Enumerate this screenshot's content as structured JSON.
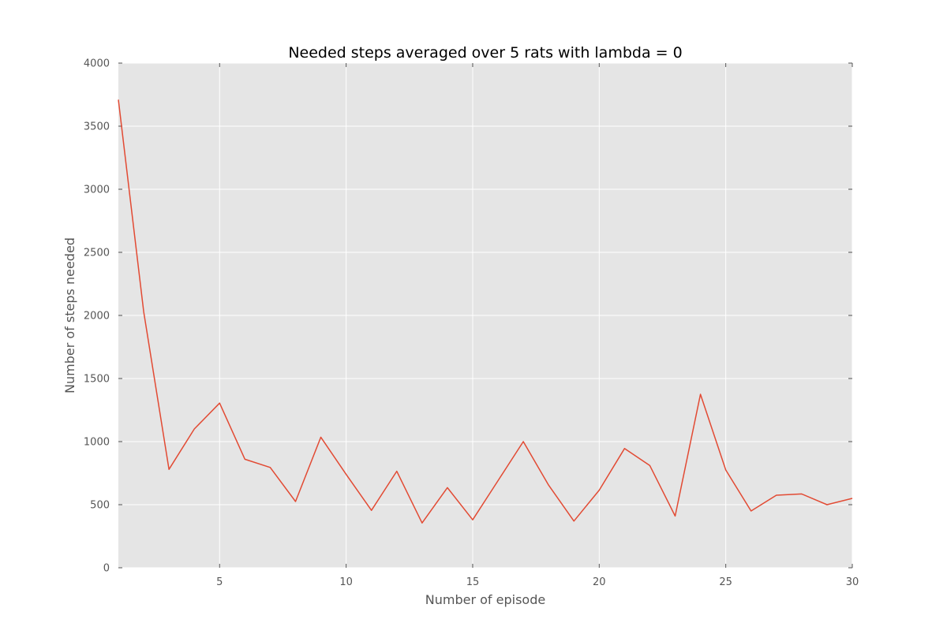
{
  "chart_data": {
    "type": "line",
    "title": "Needed steps averaged over 5 rats with lambda = 0",
    "xlabel": "Number of episode",
    "ylabel": "Number of steps needed",
    "xlim": [
      1,
      30
    ],
    "ylim": [
      0,
      4000
    ],
    "xticks": [
      5,
      10,
      15,
      20,
      25,
      30
    ],
    "yticks": [
      0,
      500,
      1000,
      1500,
      2000,
      2500,
      3000,
      3500,
      4000
    ],
    "grid": true,
    "background_color": "#e5e5e5",
    "grid_color": "#ffffff",
    "series": [
      {
        "color": "#e24a33",
        "x": [
          1,
          2,
          3,
          4,
          5,
          6,
          7,
          8,
          9,
          10,
          11,
          12,
          13,
          14,
          15,
          16,
          17,
          18,
          19,
          20,
          21,
          22,
          23,
          24,
          25,
          26,
          27,
          28,
          29,
          30
        ],
        "values": [
          3710,
          2030,
          780,
          1100,
          1305,
          860,
          795,
          525,
          1035,
          740,
          455,
          765,
          355,
          635,
          380,
          690,
          1000,
          655,
          370,
          615,
          945,
          810,
          410,
          1375,
          775,
          450,
          575,
          585,
          500,
          550
        ]
      }
    ]
  }
}
